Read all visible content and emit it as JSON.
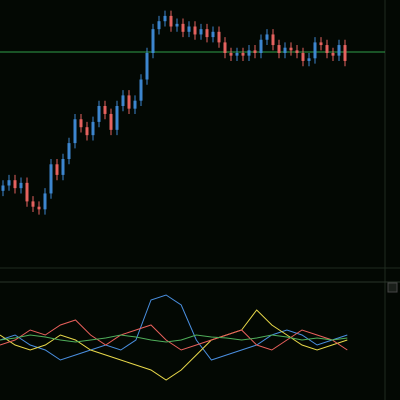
{
  "chart_data": [
    {
      "type": "candlestick",
      "up_color": "#3d86cf",
      "down_color": "#e5625f",
      "ylim": [
        0,
        100
      ],
      "reference_line": 80.4,
      "reference_color": "#2f9e4a",
      "open": [
        28,
        30,
        32,
        29,
        31,
        24,
        22,
        21,
        27,
        38,
        34,
        40,
        46,
        55,
        52,
        49,
        54,
        60,
        57,
        51,
        60,
        64,
        59,
        62,
        70,
        80,
        89,
        92,
        94,
        90,
        91,
        88,
        90,
        87,
        89,
        86,
        88,
        84,
        80,
        79,
        80,
        79,
        81,
        80,
        85,
        87,
        83,
        80,
        82,
        81,
        80,
        77,
        78,
        84,
        83,
        80,
        79,
        83
      ],
      "high": [
        32,
        34,
        34,
        33,
        33,
        26,
        24,
        29,
        40,
        40,
        42,
        48,
        57,
        57,
        54,
        56,
        62,
        62,
        59,
        62,
        66,
        66,
        64,
        72,
        82,
        91,
        94,
        96,
        96,
        93,
        93,
        92,
        92,
        91,
        91,
        90,
        90,
        86,
        82,
        82,
        82,
        83,
        83,
        87,
        89,
        89,
        85,
        84,
        84,
        83,
        82,
        80,
        86,
        86,
        85,
        82,
        85,
        85
      ],
      "low": [
        26,
        28,
        27,
        27,
        22,
        20,
        19,
        19,
        25,
        32,
        32,
        38,
        44,
        50,
        47,
        47,
        52,
        55,
        49,
        49,
        58,
        57,
        57,
        60,
        68,
        78,
        87,
        90,
        88,
        88,
        86,
        86,
        85,
        85,
        84,
        84,
        82,
        78,
        77,
        77,
        77,
        77,
        78,
        78,
        83,
        81,
        78,
        78,
        79,
        78,
        75,
        75,
        76,
        81,
        78,
        77,
        77,
        75
      ],
      "close": [
        30,
        32,
        29,
        31,
        24,
        22,
        21,
        27,
        38,
        34,
        40,
        46,
        55,
        52,
        49,
        54,
        60,
        57,
        51,
        60,
        64,
        59,
        62,
        70,
        80,
        89,
        92,
        94,
        90,
        91,
        88,
        90,
        87,
        89,
        86,
        88,
        84,
        80,
        79,
        80,
        79,
        81,
        80,
        85,
        87,
        83,
        80,
        82,
        81,
        80,
        77,
        78,
        84,
        83,
        80,
        79,
        83,
        77
      ]
    },
    {
      "type": "line",
      "x": [
        0,
        1,
        2,
        3,
        4,
        5,
        6,
        7,
        8,
        9,
        10,
        11,
        12,
        13,
        14,
        15,
        16,
        17,
        18,
        19,
        20,
        21,
        22,
        23
      ],
      "xlim": [
        0,
        25.5
      ],
      "ylim": [
        0,
        100
      ],
      "series": [
        {
          "color": "#4a8fe0",
          "values": [
            50,
            55,
            45,
            40,
            30,
            35,
            40,
            45,
            40,
            50,
            90,
            95,
            85,
            50,
            30,
            35,
            40,
            45,
            55,
            60,
            55,
            45,
            50,
            55
          ]
        },
        {
          "color": "#e8d84a",
          "values": [
            55,
            45,
            40,
            45,
            55,
            50,
            40,
            35,
            30,
            25,
            20,
            10,
            20,
            35,
            50,
            55,
            60,
            80,
            65,
            55,
            45,
            40,
            45,
            50
          ]
        },
        {
          "color": "#e8605c",
          "values": [
            45,
            50,
            60,
            55,
            65,
            70,
            55,
            45,
            55,
            60,
            65,
            50,
            40,
            45,
            50,
            55,
            60,
            45,
            40,
            50,
            60,
            55,
            50,
            40
          ]
        },
        {
          "color": "#4fae5a",
          "values": [
            50,
            52,
            55,
            53,
            50,
            48,
            50,
            52,
            55,
            53,
            50,
            48,
            50,
            55,
            53,
            52,
            50,
            52,
            55,
            53,
            50,
            52,
            50,
            52
          ]
        }
      ]
    }
  ]
}
